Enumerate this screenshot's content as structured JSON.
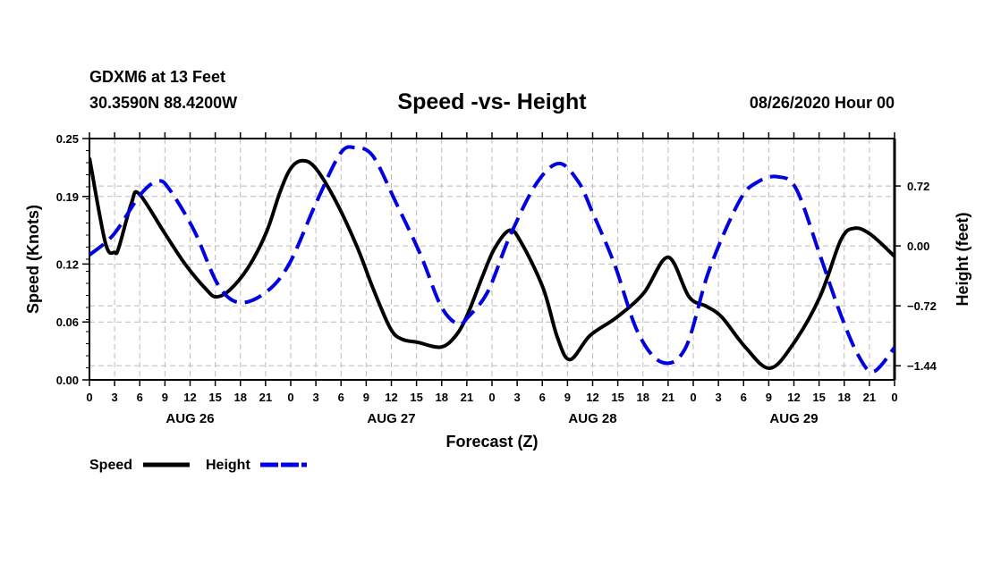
{
  "header": {
    "station": "GDXM6 at 13 Feet",
    "coords": "30.3590N 88.4200W",
    "title": "Speed -vs- Height",
    "date": "08/26/2020 Hour 00"
  },
  "chart_data": {
    "type": "line",
    "title": "Speed -vs- Height",
    "xlabel": "Forecast (Z)",
    "ylabel": "Speed (Knots)",
    "y2label": "Height (feet)",
    "xlim": [
      0,
      96
    ],
    "ylim": [
      0,
      0.25
    ],
    "y2lim": [
      -1.61,
      1.29
    ],
    "grid": true,
    "x_tick_labels": [
      "0",
      "3",
      "6",
      "9",
      "12",
      "15",
      "18",
      "21",
      "0",
      "3",
      "6",
      "9",
      "12",
      "15",
      "18",
      "21",
      "0",
      "3",
      "6",
      "9",
      "12",
      "15",
      "18",
      "21",
      "0",
      "3",
      "6",
      "9",
      "12",
      "15",
      "18",
      "21",
      "0"
    ],
    "y_ticks": [
      {
        "value": 0,
        "label": "0.00"
      },
      {
        "value": 0.06,
        "label": "0.06"
      },
      {
        "value": 0.12,
        "label": "0.12"
      },
      {
        "value": 0.19,
        "label": "0.19"
      },
      {
        "value": 0.25,
        "label": "0.25"
      }
    ],
    "y2_ticks": [
      {
        "value": 0.72,
        "label": "0.72"
      },
      {
        "value": 0,
        "label": "0.00"
      },
      {
        "value": -0.72,
        "label": "−0.72"
      },
      {
        "value": -1.44,
        "label": "−1.44"
      }
    ],
    "day_labels": [
      {
        "hour": 12,
        "label": "AUG 26"
      },
      {
        "hour": 36,
        "label": "AUG 27"
      },
      {
        "hour": 60,
        "label": "AUG 28"
      },
      {
        "hour": 84,
        "label": "AUG 29"
      }
    ],
    "legend_placement": "bottom-left",
    "series": [
      {
        "name": "Speed",
        "axis": "left",
        "color": "#000000",
        "style": "solid",
        "x": [
          0,
          1.9,
          3.0,
          3.5,
          5.0,
          5.9,
          8.9,
          11.4,
          13.9,
          15.1,
          16.7,
          18.9,
          21.1,
          22.7,
          24.0,
          25.4,
          27.0,
          29.5,
          32.0,
          33.8,
          35.9,
          37.3,
          39.1,
          41.9,
          43.7,
          45.1,
          46.9,
          48.3,
          50.1,
          51.5,
          54.1,
          55.8,
          57.3,
          59.7,
          62.9,
          66.1,
          69.0,
          71.5,
          73.6,
          75.4,
          78.2,
          81.1,
          83.9,
          87.1,
          89.6,
          91.2,
          93.1,
          96
        ],
        "y": [
          0.23,
          0.142,
          0.132,
          0.137,
          0.183,
          0.193,
          0.153,
          0.12,
          0.094,
          0.086,
          0.093,
          0.116,
          0.153,
          0.194,
          0.219,
          0.227,
          0.219,
          0.183,
          0.136,
          0.095,
          0.053,
          0.042,
          0.039,
          0.034,
          0.046,
          0.068,
          0.108,
          0.136,
          0.155,
          0.142,
          0.095,
          0.044,
          0.021,
          0.046,
          0.065,
          0.09,
          0.127,
          0.086,
          0.076,
          0.065,
          0.034,
          0.012,
          0.037,
          0.086,
          0.145,
          0.157,
          0.151,
          0.128
        ]
      },
      {
        "name": "Height",
        "axis": "right",
        "color": "#0000e0",
        "style": "dashed",
        "x": [
          0,
          2.9,
          6.1,
          8.2,
          9.6,
          12.5,
          15.3,
          17.8,
          21.0,
          23.8,
          27.0,
          29.9,
          31.7,
          33.8,
          36.6,
          39.5,
          41.9,
          43.9,
          45.1,
          47.5,
          50.1,
          53.3,
          56.0,
          58.3,
          60.0,
          62.6,
          65.4,
          68.3,
          71.1,
          73.9,
          77.5,
          79.7,
          82.1,
          84.3,
          87.1,
          89.6,
          91.7,
          93.5,
          96
        ],
        "y": [
          -0.11,
          0.14,
          0.62,
          0.78,
          0.67,
          0.18,
          -0.46,
          -0.68,
          -0.56,
          -0.22,
          0.51,
          1.11,
          1.18,
          1.08,
          0.51,
          -0.11,
          -0.72,
          -0.94,
          -0.86,
          -0.55,
          0.11,
          0.75,
          0.99,
          0.77,
          0.4,
          -0.22,
          -1.04,
          -1.4,
          -1.22,
          -0.29,
          0.54,
          0.77,
          0.83,
          0.68,
          -0.11,
          -0.83,
          -1.32,
          -1.51,
          -1.22
        ]
      }
    ]
  }
}
